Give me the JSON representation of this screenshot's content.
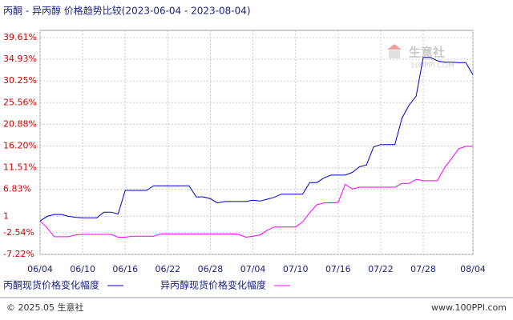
{
  "chart_data": {
    "type": "line",
    "title": "丙酮 - 异丙醇 价格趋势比较(2023-06-04 - 2023-08-04)",
    "categories": [
      "06/04",
      null,
      null,
      null,
      null,
      null,
      "06/10",
      null,
      null,
      null,
      null,
      null,
      "06/16",
      null,
      null,
      null,
      null,
      null,
      "06/22",
      null,
      null,
      null,
      null,
      null,
      "06/28",
      null,
      null,
      null,
      null,
      null,
      "07/04",
      null,
      null,
      null,
      null,
      null,
      "07/10",
      null,
      null,
      null,
      null,
      null,
      "07/16",
      null,
      null,
      null,
      null,
      null,
      "07/22",
      null,
      null,
      null,
      null,
      null,
      "07/28",
      null,
      null,
      null,
      null,
      null,
      null,
      "08/04"
    ],
    "series": [
      {
        "name": "丙酮现货价格变化幅度",
        "color": "#0000cc",
        "values": [
          0,
          1.0,
          1.4,
          1.4,
          1.0,
          0.8,
          0.7,
          0.7,
          0.7,
          1.9,
          1.9,
          1.5,
          6.6,
          6.6,
          6.6,
          6.6,
          7.6,
          7.6,
          7.6,
          7.6,
          7.6,
          7.6,
          5.2,
          5.2,
          4.8,
          3.9,
          4.2,
          4.2,
          4.2,
          4.2,
          4.5,
          4.3,
          4.7,
          5.1,
          5.8,
          5.8,
          5.8,
          5.8,
          8.3,
          8.3,
          9.3,
          9.9,
          9.9,
          9.9,
          10.5,
          11.7,
          12.1,
          16.0,
          16.5,
          16.5,
          16.5,
          22.2,
          25.0,
          27.0,
          35.3,
          35.3,
          34.6,
          34.3,
          34.3,
          34.2,
          34.2,
          31.6
        ]
      },
      {
        "name": "异丙醇现货价格变化幅度",
        "color": "#ff00ff",
        "values": [
          0,
          -1.5,
          -3.4,
          -3.4,
          -3.4,
          -3.0,
          -2.9,
          -2.9,
          -2.9,
          -2.9,
          -2.9,
          -3.5,
          -3.5,
          -3.3,
          -3.3,
          -3.3,
          -3.3,
          -2.8,
          -2.8,
          -2.8,
          -2.8,
          -2.8,
          -2.8,
          -2.8,
          -2.8,
          -2.8,
          -2.8,
          -2.8,
          -2.9,
          -3.5,
          -3.3,
          -3.0,
          -2.0,
          -1.3,
          -1.3,
          -1.3,
          -1.3,
          -0.2,
          1.8,
          3.5,
          3.9,
          3.9,
          4.0,
          7.9,
          6.9,
          7.3,
          7.3,
          7.3,
          7.3,
          7.3,
          7.3,
          8.1,
          8.1,
          9.0,
          8.7,
          8.7,
          8.7,
          11.5,
          13.5,
          15.6,
          16.1,
          16.1
        ]
      }
    ],
    "ylim": [
      -7.22,
      39.61
    ],
    "yticks": [
      {
        "value": -7.22,
        "label": "-7.22%"
      },
      {
        "value": -2.54,
        "label": "-2.54%"
      },
      1,
      {
        "value": 6.83,
        "label": "6.83%"
      },
      {
        "value": 11.51,
        "label": "11.51%"
      },
      {
        "value": 16.2,
        "label": "16.20%"
      },
      {
        "value": 20.88,
        "label": "20.88%"
      },
      {
        "value": 25.56,
        "label": "25.56%"
      },
      {
        "value": 30.25,
        "label": "30.25%"
      },
      {
        "value": 34.93,
        "label": "34.93%"
      },
      {
        "value": 39.61,
        "label": "39.61%"
      }
    ],
    "grid": true,
    "watermark": {
      "name": "生意社",
      "site": "100PPI.COM"
    },
    "footer": {
      "left": "© 2025.05 生意社",
      "right": "www.100PPI.com"
    }
  }
}
